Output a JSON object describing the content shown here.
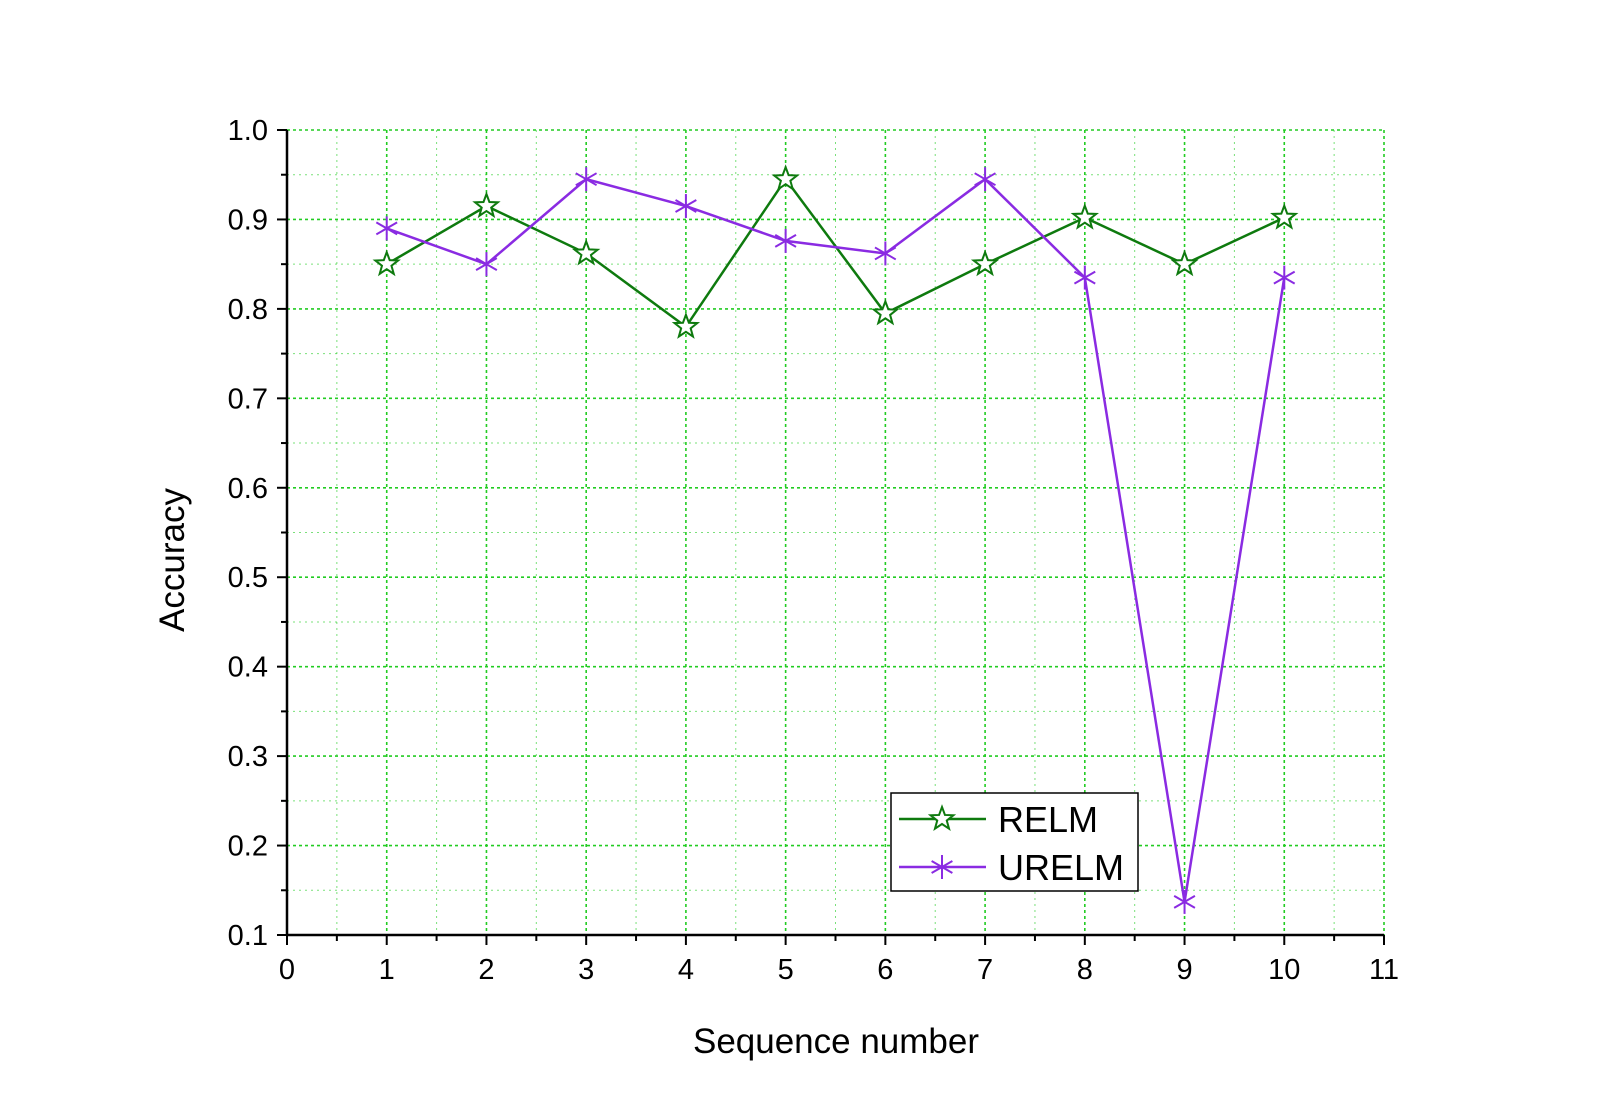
{
  "chart_data": {
    "type": "line",
    "title": "",
    "xlabel": "Sequence number",
    "ylabel": "Accuracy",
    "xlim": [
      0,
      11
    ],
    "ylim": [
      0.1,
      1.0
    ],
    "x_ticks": [
      "0",
      "1",
      "2",
      "3",
      "4",
      "5",
      "6",
      "7",
      "8",
      "9",
      "10",
      "11"
    ],
    "y_ticks": [
      "0.1",
      "0.2",
      "0.3",
      "0.4",
      "0.5",
      "0.6",
      "0.7",
      "0.8",
      "0.9",
      "1.0"
    ],
    "grid": true,
    "grid_color": "#22cc22",
    "legend_position": "bottom-right",
    "x": [
      1,
      2,
      3,
      4,
      5,
      6,
      7,
      8,
      9,
      10
    ],
    "series": [
      {
        "name": "RELM",
        "marker": "star",
        "color": "#0e7a0e",
        "values": [
          0.85,
          0.915,
          0.862,
          0.78,
          0.945,
          0.795,
          0.85,
          0.902,
          0.85,
          0.902
        ]
      },
      {
        "name": "URELM",
        "marker": "asterisk",
        "color": "#8a2be2",
        "values": [
          0.89,
          0.85,
          0.945,
          0.915,
          0.876,
          0.862,
          0.945,
          0.835,
          0.137,
          0.835
        ]
      }
    ]
  }
}
